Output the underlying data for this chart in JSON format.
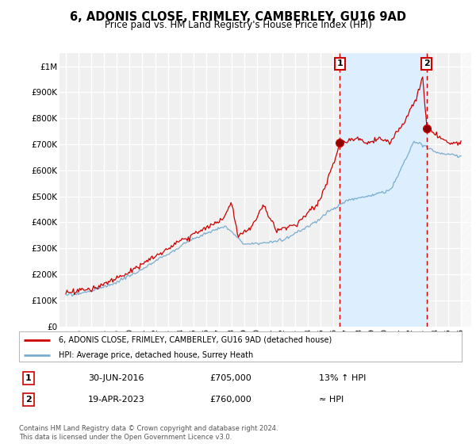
{
  "title": "6, ADONIS CLOSE, FRIMLEY, CAMBERLEY, GU16 9AD",
  "subtitle": "Price paid vs. HM Land Registry's House Price Index (HPI)",
  "red_label": "6, ADONIS CLOSE, FRIMLEY, CAMBERLEY, GU16 9AD (detached house)",
  "blue_label": "HPI: Average price, detached house, Surrey Heath",
  "annotation1_date": "30-JUN-2016",
  "annotation1_price": 705000,
  "annotation1_price_str": "£705,000",
  "annotation1_text": "13% ↑ HPI",
  "annotation2_date": "19-APR-2023",
  "annotation2_price": 760000,
  "annotation2_price_str": "£760,000",
  "annotation2_text": "≈ HPI",
  "footer": "Contains HM Land Registry data © Crown copyright and database right 2024.\nThis data is licensed under the Open Government Licence v3.0.",
  "yticks": [
    0,
    100000,
    200000,
    300000,
    400000,
    500000,
    600000,
    700000,
    800000,
    900000,
    1000000
  ],
  "ytick_labels": [
    "£0",
    "£100K",
    "£200K",
    "£300K",
    "£400K",
    "£500K",
    "£600K",
    "£700K",
    "£800K",
    "£900K",
    "£1M"
  ],
  "background_color": "#f0f0f0",
  "grid_color": "#ffffff",
  "red_color": "#cc0000",
  "blue_color": "#7aadcf",
  "shade_color": "#ddeeff",
  "sale1_x": 2016.5,
  "sale2_x": 2023.3,
  "sale1_price": 705000,
  "sale2_price": 760000,
  "xlim_left": 1994.5,
  "xlim_right": 2026.8,
  "ylim_top": 1050000
}
